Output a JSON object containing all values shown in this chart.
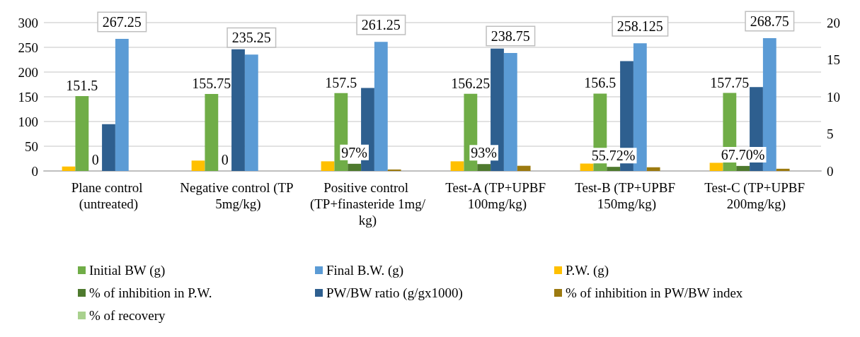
{
  "chart_data": {
    "type": "bar",
    "categories": [
      "Plane control (untreated)",
      "Negative control (TP 5mg/kg)",
      "Positive control (TP+finasteride 1mg/kg)",
      "Test-A (TP+UPBF 100mg/kg)",
      "Test-B (TP+UPBF 150mg/kg)",
      "Test-C (TP+UPBF 200mg/kg)"
    ],
    "series": [
      {
        "name": "P.W. (g)",
        "color": "#ffc000",
        "axis": "y2",
        "values": [
          0.6,
          1.4,
          1.3,
          1.3,
          1.0,
          1.1
        ]
      },
      {
        "name": "Initial BW (g)",
        "color": "#70ad47",
        "values": [
          151.5,
          155.75,
          157.5,
          156.25,
          156.5,
          157.75
        ],
        "value_labels": [
          "151.5",
          "155.75",
          "157.5",
          "156.25",
          "156.5",
          "157.75"
        ]
      },
      {
        "name": "% of inhibition in P.W.",
        "color": "#4e7a2e",
        "axis": "y2",
        "values": [
          0,
          0,
          0.97,
          0.93,
          0.5572,
          0.677
        ],
        "value_labels": [
          "0",
          "0",
          "97%",
          "93%",
          "55.72%",
          "67.70%"
        ]
      },
      {
        "name": "PW/BW ratio (g/gx1000)",
        "color": "#2e5f8f",
        "axis": "y2",
        "values": [
          6.3,
          16.4,
          11.2,
          16.5,
          14.8,
          11.3
        ]
      },
      {
        "name": "Final B.W. (g)",
        "color": "#5b9bd5",
        "values": [
          267.25,
          235.25,
          261.25,
          238.75,
          258.125,
          268.75
        ],
        "value_labels": [
          "267.25",
          "235.25",
          "261.25",
          "238.75",
          "258.125",
          "268.75"
        ]
      },
      {
        "name": "% of inhibition in PW/BW index",
        "color": "#9c7a10",
        "axis": "y2",
        "values": [
          0,
          0,
          0.2,
          0.7,
          0.5,
          0.3
        ]
      },
      {
        "name": "% of recovery",
        "color": "#a9d18e",
        "axis": "y2",
        "values": [
          null,
          null,
          null,
          null,
          null,
          null
        ]
      }
    ],
    "ylim": [
      0,
      300
    ],
    "yticks": [
      0,
      50,
      100,
      150,
      200,
      250,
      300
    ],
    "y2lim": [
      0,
      20
    ],
    "y2ticks": [
      0,
      5,
      10,
      15,
      20
    ],
    "grid": "y",
    "legend": "bottom"
  }
}
